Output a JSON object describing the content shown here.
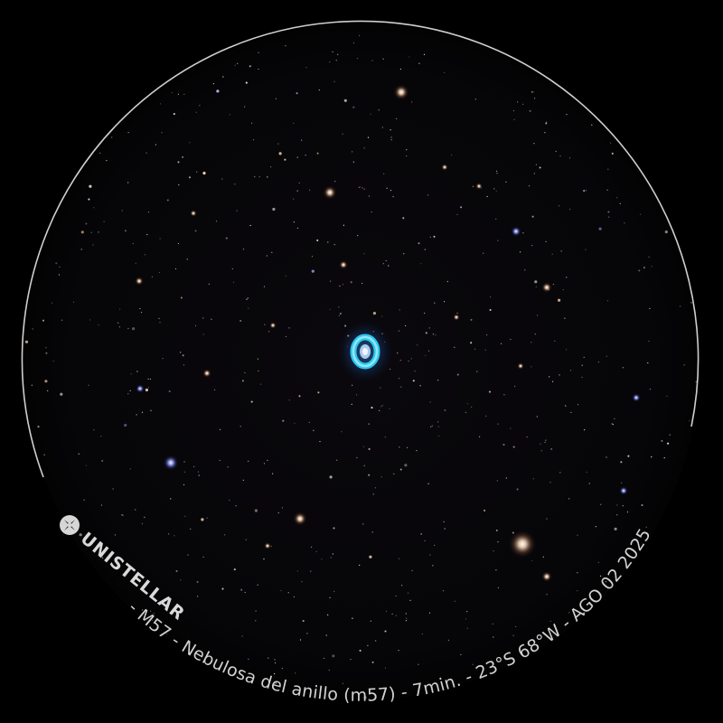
{
  "brand": {
    "name": "UNISTELLAR",
    "logo_icon": "unistellar-logo-icon"
  },
  "caption": {
    "separator": " - ",
    "object_id": "M57",
    "object_name": "Nebulosa del anillo (m57)",
    "exposure": "7min.",
    "location": "23°S 68°W",
    "date": "AGO 02 2025",
    "full_text": " - M57 - Nebulosa del anillo (m57) - 7min. - 23°S 68°W - AGO 02 2025"
  },
  "colors": {
    "background": "#000000",
    "sky": "#07060a",
    "rim": "#cfcfcf",
    "nebula_ring": "#38c8ee",
    "nebula_core": "#b9dcff",
    "star_warm": "#ffd9b3",
    "star_blue": "#8fa0ff"
  }
}
